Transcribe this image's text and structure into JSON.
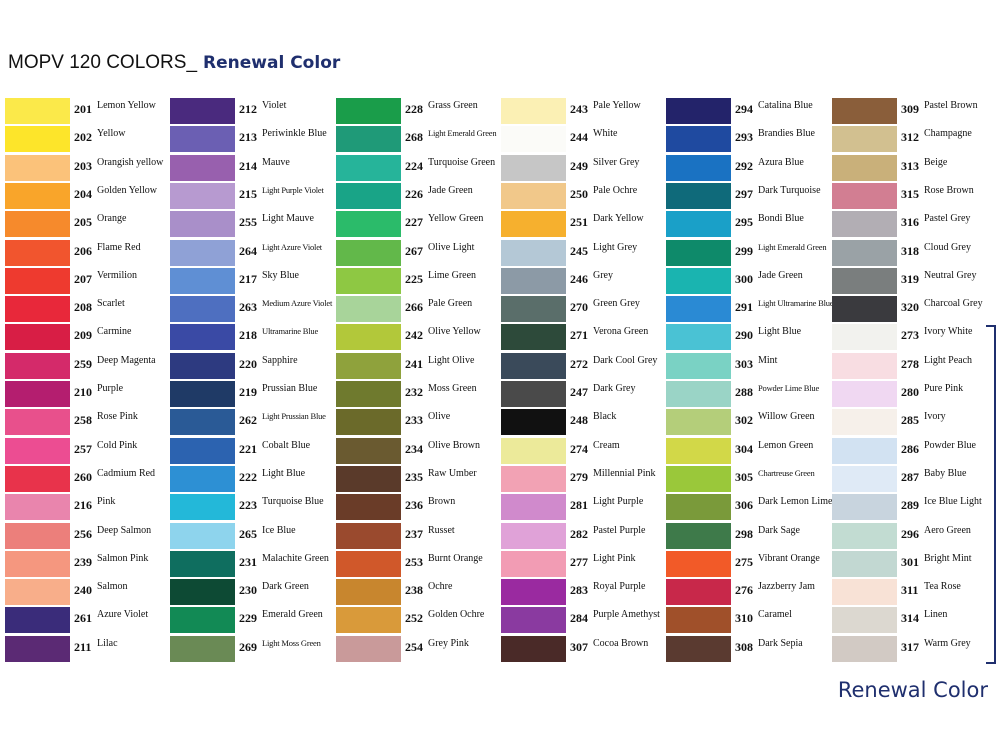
{
  "header": {
    "title": "MOPV 120 COLORS_",
    "subtitle": "Renewal Color"
  },
  "columns": [
    [
      {
        "code": 201,
        "name": "Lemon Yellow",
        "color": "#fbe94a"
      },
      {
        "code": 202,
        "name": "Yellow",
        "color": "#fde52a"
      },
      {
        "code": 203,
        "name": "Orangish yellow",
        "color": "#fbc27a"
      },
      {
        "code": 204,
        "name": "Golden Yellow",
        "color": "#f9a52a"
      },
      {
        "code": 205,
        "name": "Orange",
        "color": "#f68a2c"
      },
      {
        "code": 206,
        "name": "Flame Red",
        "color": "#f1552e"
      },
      {
        "code": 207,
        "name": "Vermilion",
        "color": "#ee3a2f"
      },
      {
        "code": 208,
        "name": "Scarlet",
        "color": "#e8283a"
      },
      {
        "code": 209,
        "name": "Carmine",
        "color": "#d81e45"
      },
      {
        "code": 259,
        "name": "Deep Magenta",
        "color": "#d42a6a"
      },
      {
        "code": 210,
        "name": "Purple",
        "color": "#b41e6f"
      },
      {
        "code": 258,
        "name": "Rose Pink",
        "color": "#e8508c"
      },
      {
        "code": 257,
        "name": "Cold Pink",
        "color": "#ec4d92"
      },
      {
        "code": 260,
        "name": "Cadmium Red",
        "color": "#e8334b"
      },
      {
        "code": 216,
        "name": "Pink",
        "color": "#e985ad"
      },
      {
        "code": 256,
        "name": "Deep Salmon",
        "color": "#ec7f7b"
      },
      {
        "code": 239,
        "name": "Salmon Pink",
        "color": "#f5977f"
      },
      {
        "code": 240,
        "name": "Salmon",
        "color": "#f8ae8a"
      },
      {
        "code": 261,
        "name": "Azure Violet",
        "color": "#3a2c7a"
      },
      {
        "code": 211,
        "name": "Lilac",
        "color": "#5b2a74"
      }
    ],
    [
      {
        "code": 212,
        "name": "Violet",
        "color": "#4a2a7e"
      },
      {
        "code": 213,
        "name": "Periwinkle Blue",
        "color": "#6b5fb3"
      },
      {
        "code": 214,
        "name": "Mauve",
        "color": "#9860ae"
      },
      {
        "code": 215,
        "name": "Light Purple Violet",
        "color": "#b79ad0"
      },
      {
        "code": 255,
        "name": "Light Mauve",
        "color": "#a98fc9"
      },
      {
        "code": 264,
        "name": "Light Azure Violet",
        "color": "#8fa1d6"
      },
      {
        "code": 217,
        "name": "Sky Blue",
        "color": "#5f8fd4"
      },
      {
        "code": 263,
        "name": "Medium Azure Violet",
        "color": "#4e6fc0"
      },
      {
        "code": 218,
        "name": "Ultramarine Blue",
        "color": "#3a4aa5"
      },
      {
        "code": 220,
        "name": "Sapphire",
        "color": "#2d3a80"
      },
      {
        "code": 219,
        "name": "Prussian Blue",
        "color": "#1f3a66"
      },
      {
        "code": 262,
        "name": "Light Prussian Blue",
        "color": "#2a5a96"
      },
      {
        "code": 221,
        "name": "Cobalt Blue",
        "color": "#2c63b0"
      },
      {
        "code": 222,
        "name": "Light Blue",
        "color": "#2d90d4"
      },
      {
        "code": 223,
        "name": "Turquoise Blue",
        "color": "#23b8d9"
      },
      {
        "code": 265,
        "name": "Ice Blue",
        "color": "#8ed4ed"
      },
      {
        "code": 231,
        "name": "Malachite Green",
        "color": "#0f6e5f"
      },
      {
        "code": 230,
        "name": "Dark Green",
        "color": "#0d4a34"
      },
      {
        "code": 229,
        "name": "Emerald Green",
        "color": "#128a55"
      },
      {
        "code": 269,
        "name": "Light Moss Green",
        "color": "#6a8a55"
      }
    ],
    [
      {
        "code": 228,
        "name": "Grass Green",
        "color": "#1a9d4a"
      },
      {
        "code": 268,
        "name": "Light Emerald Green",
        "color": "#1f9a78"
      },
      {
        "code": 224,
        "name": "Turquoise Green",
        "color": "#26b49a"
      },
      {
        "code": 226,
        "name": "Jade Green",
        "color": "#19a487"
      },
      {
        "code": 227,
        "name": "Yellow Green",
        "color": "#2bbb6a"
      },
      {
        "code": 267,
        "name": "Olive Light",
        "color": "#62b84a"
      },
      {
        "code": 225,
        "name": "Lime Green",
        "color": "#8ec843"
      },
      {
        "code": 266,
        "name": "Pale Green",
        "color": "#a8d49a"
      },
      {
        "code": 242,
        "name": "Olive Yellow",
        "color": "#b2c83a"
      },
      {
        "code": 241,
        "name": "Light Olive",
        "color": "#8fa23c"
      },
      {
        "code": 232,
        "name": "Moss Green",
        "color": "#6f7a2e"
      },
      {
        "code": 233,
        "name": "Olive",
        "color": "#6b6a2a"
      },
      {
        "code": 234,
        "name": "Olive Brown",
        "color": "#6a5a30"
      },
      {
        "code": 235,
        "name": "Raw Umber",
        "color": "#5a3a2a"
      },
      {
        "code": 236,
        "name": "Brown",
        "color": "#6a3c28"
      },
      {
        "code": 237,
        "name": "Russet",
        "color": "#9a4a2e"
      },
      {
        "code": 253,
        "name": "Burnt Orange",
        "color": "#d0582a"
      },
      {
        "code": 238,
        "name": "Ochre",
        "color": "#c8862e"
      },
      {
        "code": 252,
        "name": "Golden Ochre",
        "color": "#d99a3a"
      },
      {
        "code": 254,
        "name": "Grey Pink",
        "color": "#c99a9a"
      }
    ],
    [
      {
        "code": 243,
        "name": "Pale Yellow",
        "color": "#fbf0b4"
      },
      {
        "code": 244,
        "name": "White",
        "color": "#fbfbf8"
      },
      {
        "code": 249,
        "name": "Silver Grey",
        "color": "#c6c6c6"
      },
      {
        "code": 250,
        "name": "Pale Ochre",
        "color": "#f1c88a"
      },
      {
        "code": 251,
        "name": "Dark Yellow",
        "color": "#f6b02e"
      },
      {
        "code": 245,
        "name": "Light Grey",
        "color": "#b4c8d6"
      },
      {
        "code": 246,
        "name": "Grey",
        "color": "#8c9aa6"
      },
      {
        "code": 270,
        "name": "Green Grey",
        "color": "#5a6e6a"
      },
      {
        "code": 271,
        "name": "Verona Green",
        "color": "#2d4a3a"
      },
      {
        "code": 272,
        "name": "Dark Cool Grey",
        "color": "#3a4a5a"
      },
      {
        "code": 247,
        "name": "Dark Grey",
        "color": "#4a4a4a"
      },
      {
        "code": 248,
        "name": "Black",
        "color": "#111111"
      },
      {
        "code": 274,
        "name": "Cream",
        "color": "#ecea9a"
      },
      {
        "code": 279,
        "name": "Millennial Pink",
        "color": "#f2a2b4"
      },
      {
        "code": 281,
        "name": "Light Purple",
        "color": "#d08acc"
      },
      {
        "code": 282,
        "name": "Pastel Purple",
        "color": "#e0a2d8"
      },
      {
        "code": 277,
        "name": "Light Pink",
        "color": "#f29cb4"
      },
      {
        "code": 283,
        "name": "Royal Purple",
        "color": "#9a2aa0"
      },
      {
        "code": 284,
        "name": "Purple Amethyst",
        "color": "#8a3aa0"
      },
      {
        "code": 307,
        "name": "Cocoa Brown",
        "color": "#4a2a28"
      }
    ],
    [
      {
        "code": 294,
        "name": "Catalina Blue",
        "color": "#23236a"
      },
      {
        "code": 293,
        "name": "Brandies Blue",
        "color": "#1f4aa0"
      },
      {
        "code": 292,
        "name": "Azura Blue",
        "color": "#1a72c2"
      },
      {
        "code": 297,
        "name": "Dark Turquoise",
        "color": "#0f6a7a"
      },
      {
        "code": 295,
        "name": "Bondi Blue",
        "color": "#1aa0c8"
      },
      {
        "code": 299,
        "name": "Light Emerald Green",
        "color": "#0e8a6a"
      },
      {
        "code": 300,
        "name": "Jade Green",
        "color": "#1ab4b0"
      },
      {
        "code": 291,
        "name": "Light Ultramarine Blue",
        "color": "#2a8ad4"
      },
      {
        "code": 290,
        "name": "Light Blue",
        "color": "#4ac2d4"
      },
      {
        "code": 303,
        "name": "Mint",
        "color": "#7ad2c4"
      },
      {
        "code": 288,
        "name": "Powder Lime Blue",
        "color": "#9ad4c6"
      },
      {
        "code": 302,
        "name": "Willow Green",
        "color": "#b4ce7a"
      },
      {
        "code": 304,
        "name": "Lemon Green",
        "color": "#d2d848"
      },
      {
        "code": 305,
        "name": "Chartreuse Green",
        "color": "#9ac83a"
      },
      {
        "code": 306,
        "name": "Dark Lemon Lime",
        "color": "#7a9a3a"
      },
      {
        "code": 298,
        "name": "Dark Sage",
        "color": "#3e7a4a"
      },
      {
        "code": 275,
        "name": "Vibrant Orange",
        "color": "#f25a28"
      },
      {
        "code": 276,
        "name": "Jazzberry Jam",
        "color": "#c8284a"
      },
      {
        "code": 310,
        "name": "Caramel",
        "color": "#a0502a"
      },
      {
        "code": 308,
        "name": "Dark Sepia",
        "color": "#5a3a30"
      }
    ],
    [
      {
        "code": 309,
        "name": "Pastel Brown",
        "color": "#8a5e3a"
      },
      {
        "code": 312,
        "name": "Champagne",
        "color": "#d2c090"
      },
      {
        "code": 313,
        "name": "Beige",
        "color": "#c9b07a"
      },
      {
        "code": 315,
        "name": "Rose Brown",
        "color": "#d27e92"
      },
      {
        "code": 316,
        "name": "Pastel Grey",
        "color": "#b2aeb4"
      },
      {
        "code": 318,
        "name": "Cloud Grey",
        "color": "#9aa2a6"
      },
      {
        "code": 319,
        "name": "Neutral Grey",
        "color": "#7a7e7e"
      },
      {
        "code": 320,
        "name": "Charcoal Grey",
        "color": "#3a3a3e"
      },
      {
        "code": 273,
        "name": "Ivory White",
        "color": "#f2f2ee"
      },
      {
        "code": 278,
        "name": "Light Peach",
        "color": "#f8dde2"
      },
      {
        "code": 280,
        "name": "Pure Pink",
        "color": "#f0d8f2"
      },
      {
        "code": 285,
        "name": "Ivory",
        "color": "#f6f0ea"
      },
      {
        "code": 286,
        "name": "Powder Blue",
        "color": "#d2e2f2"
      },
      {
        "code": 287,
        "name": "Baby Blue",
        "color": "#dfeaf6"
      },
      {
        "code": 289,
        "name": "Ice Blue Light",
        "color": "#c8d4de"
      },
      {
        "code": 296,
        "name": "Aero Green",
        "color": "#c2dcd2"
      },
      {
        "code": 301,
        "name": "Bright Mint",
        "color": "#c2d8d2"
      },
      {
        "code": 311,
        "name": "Tea Rose",
        "color": "#f8e2d6"
      },
      {
        "code": 314,
        "name": "Linen",
        "color": "#dcd8d0"
      },
      {
        "code": 317,
        "name": "Warm Grey",
        "color": "#d2cac4"
      }
    ]
  ],
  "footer": "Renewal Color"
}
